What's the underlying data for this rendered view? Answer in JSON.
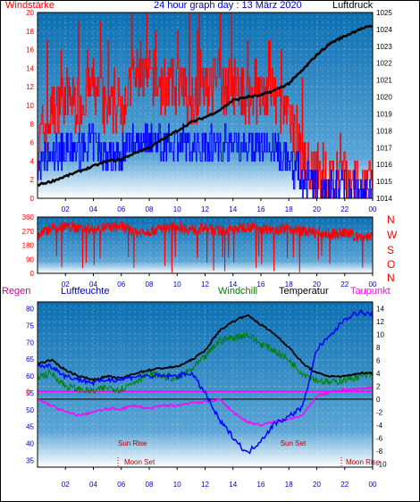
{
  "header": {
    "left_label": "Windstärke",
    "title": "24 hour graph day : 13 März 2020",
    "right_label": "Luftdruck"
  },
  "bottom_header": {
    "regen": "Regen",
    "luftfeuchte": "Luftfeuchte",
    "windchill": "Windchill",
    "temperatur": "Temperatur",
    "taupunkt": "Taupunkt"
  },
  "direction_labels": [
    "N",
    "W",
    "S",
    "O",
    "N"
  ],
  "colors": {
    "wind": "#ff0000",
    "wind_low": "#0000ff",
    "pressure": "#000000",
    "winddir": "#ff0000",
    "humidity": "#0000ff",
    "windchill": "#008000",
    "temperature": "#000000",
    "dewpoint": "#ff00ff",
    "rain_title": "#c8009a",
    "sky_top": "#0b6fb2",
    "sky_bottom": "#ffffff"
  },
  "events": [
    {
      "label": "Sun Rise",
      "hour": 6.8,
      "row": "upper"
    },
    {
      "label": "Moon Set",
      "hour": 7.3,
      "row": "lower"
    },
    {
      "label": "Sun Set",
      "hour": 18.3,
      "row": "upper"
    },
    {
      "label": "Moon Rise",
      "hour": 23.3,
      "row": "lower"
    }
  ],
  "chart_data": [
    {
      "type": "line",
      "title": "24 hour graph day : 13 März 2020",
      "x_ticks": [
        "02",
        "04",
        "06",
        "08",
        "10",
        "12",
        "14",
        "16",
        "18",
        "20",
        "22",
        "00"
      ],
      "xlim": [
        0,
        24
      ],
      "left_axis": {
        "label": "Windstärke",
        "ylim": [
          0,
          20
        ],
        "ticks": [
          0,
          2,
          4,
          6,
          8,
          10,
          12,
          14,
          16,
          18,
          20
        ]
      },
      "right_axis": {
        "label": "Luftdruck",
        "ylim": [
          1014,
          1025
        ],
        "ticks": [
          1014,
          1015,
          1016,
          1017,
          1018,
          1019,
          1020,
          1021,
          1022,
          1023,
          1024,
          1025
        ]
      },
      "series": [
        {
          "name": "Windstärke",
          "axis": "left",
          "x": [
            0,
            1,
            2,
            3,
            4,
            5,
            6,
            7,
            8,
            9,
            10,
            11,
            12,
            13,
            14,
            15,
            16,
            17,
            18,
            19,
            20,
            21,
            22,
            23,
            24
          ],
          "values": [
            6,
            9,
            11,
            10,
            12,
            9,
            10,
            13,
            13,
            12,
            12,
            11,
            12,
            12,
            12,
            11,
            11,
            11,
            8,
            4,
            2,
            2,
            2,
            1,
            1
          ]
        },
        {
          "name": "Luftdruck",
          "axis": "right",
          "x": [
            0,
            1,
            2,
            3,
            4,
            5,
            6,
            7,
            8,
            9,
            10,
            11,
            12,
            13,
            14,
            15,
            16,
            17,
            18,
            19,
            20,
            21,
            22,
            23,
            24
          ],
          "values": [
            1014.8,
            1015.0,
            1015.3,
            1015.6,
            1015.9,
            1016.2,
            1016.3,
            1016.7,
            1017.0,
            1017.5,
            1018.0,
            1018.5,
            1018.8,
            1019.2,
            1019.8,
            1020.0,
            1020.1,
            1020.4,
            1020.8,
            1021.6,
            1022.5,
            1023.2,
            1023.6,
            1024.0,
            1024.2
          ]
        }
      ]
    },
    {
      "type": "line",
      "x_ticks": [
        "02",
        "04",
        "06",
        "08",
        "10",
        "12",
        "14",
        "16",
        "18",
        "20",
        "22",
        "00"
      ],
      "xlim": [
        0,
        24
      ],
      "y_ticks": [
        0,
        90,
        180,
        270,
        360
      ],
      "ylim": [
        0,
        360
      ],
      "direction_labels": [
        "N",
        "W",
        "S",
        "O",
        "N"
      ],
      "series": [
        {
          "name": "Windrichtung",
          "x": [
            0,
            1,
            2,
            3,
            4,
            5,
            6,
            7,
            8,
            9,
            10,
            11,
            12,
            13,
            14,
            15,
            16,
            17,
            18,
            19,
            20,
            21,
            22,
            23,
            24
          ],
          "values": [
            240,
            290,
            300,
            290,
            280,
            295,
            300,
            260,
            270,
            290,
            300,
            280,
            290,
            270,
            280,
            300,
            290,
            280,
            290,
            270,
            260,
            250,
            260,
            230,
            240
          ]
        }
      ]
    },
    {
      "type": "line",
      "x_ticks": [
        "02",
        "04",
        "06",
        "08",
        "10",
        "12",
        "14",
        "16",
        "18",
        "20",
        "22",
        "00"
      ],
      "xlim": [
        0,
        24
      ],
      "left_axis": {
        "label": "Luftfeuchte",
        "ylim": [
          33,
          82
        ],
        "ticks": [
          35,
          40,
          45,
          50,
          55,
          60,
          65,
          70,
          75,
          80
        ]
      },
      "right_axis": {
        "label": "Temperatur",
        "ylim": [
          -10.5,
          15
        ],
        "ticks": [
          -10,
          -8,
          -6,
          -4,
          -2,
          0,
          2,
          4,
          6,
          8,
          10,
          12,
          14
        ]
      },
      "rain_axis": {
        "label": "Regen",
        "ticks": [
          0
        ]
      },
      "series": [
        {
          "name": "Luftfeuchte",
          "axis": "left",
          "x": [
            0,
            1,
            2,
            3,
            4,
            5,
            6,
            7,
            8,
            9,
            10,
            11,
            12,
            13,
            14,
            15,
            16,
            17,
            18,
            19,
            20,
            21,
            22,
            23,
            24
          ],
          "values": [
            63,
            63,
            60,
            59,
            58,
            59,
            59,
            60,
            60,
            60,
            60,
            61,
            55,
            47,
            42,
            37,
            41,
            46,
            48,
            51,
            68,
            72,
            77,
            79,
            78
          ]
        },
        {
          "name": "Windchill",
          "axis": "right",
          "x": [
            0,
            1,
            2,
            3,
            4,
            5,
            6,
            7,
            8,
            9,
            10,
            11,
            12,
            13,
            14,
            15,
            16,
            17,
            18,
            19,
            20,
            21,
            22,
            23,
            24
          ],
          "values": [
            3.5,
            4.0,
            2.0,
            1.5,
            1.2,
            1.8,
            1.5,
            2.8,
            4.0,
            3.5,
            3.2,
            4.5,
            6.5,
            9.0,
            9.5,
            10.0,
            8.5,
            7.5,
            6.0,
            4.0,
            3.0,
            2.5,
            3.0,
            3.5,
            3.8
          ]
        },
        {
          "name": "Temperatur",
          "axis": "right",
          "x": [
            0,
            1,
            2,
            3,
            4,
            5,
            6,
            7,
            8,
            9,
            10,
            11,
            12,
            13,
            14,
            15,
            16,
            17,
            18,
            19,
            20,
            21,
            22,
            23,
            24
          ],
          "values": [
            5.5,
            6.0,
            4.5,
            3.5,
            3.0,
            3.5,
            3.2,
            4.0,
            4.5,
            4.8,
            5.0,
            6.0,
            7.5,
            10.5,
            12.0,
            13.0,
            11.5,
            10.0,
            8.0,
            5.5,
            4.0,
            3.5,
            3.5,
            4.0,
            4.0
          ]
        },
        {
          "name": "Taupunkt",
          "axis": "right",
          "x": [
            0,
            1,
            2,
            3,
            4,
            5,
            6,
            7,
            8,
            9,
            10,
            11,
            12,
            13,
            14,
            15,
            16,
            17,
            18,
            19,
            20,
            21,
            22,
            23,
            24
          ],
          "values": [
            0,
            -1,
            -2,
            -2.5,
            -2,
            -1.5,
            -1.5,
            -1,
            -1.5,
            -1,
            -1,
            -0.5,
            -0.5,
            0,
            -2,
            -3.5,
            -4,
            -3.5,
            -3,
            -2.5,
            0.5,
            1,
            1.5,
            1.5,
            1.8
          ]
        }
      ]
    }
  ]
}
